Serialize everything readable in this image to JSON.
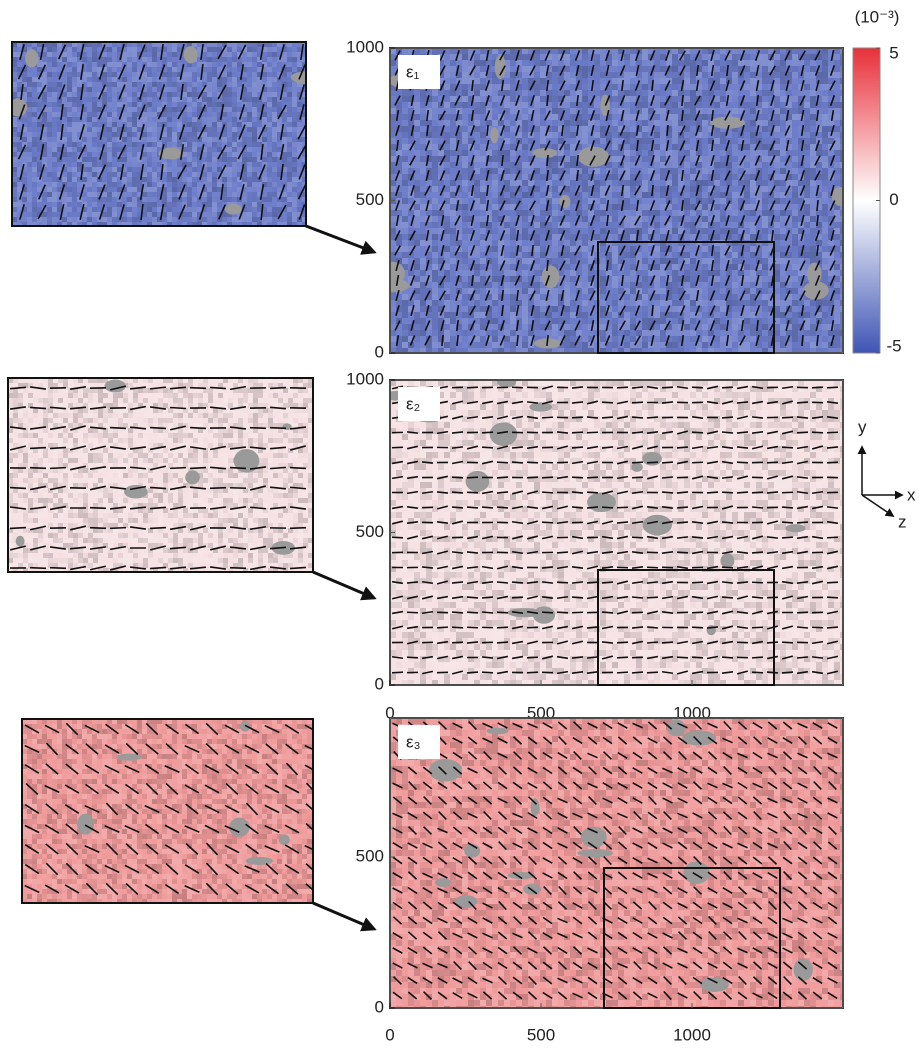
{
  "chart_data": [
    {
      "type": "heatmap",
      "label": "ε₁",
      "color": "#6d7cc9",
      "xlim": [
        0,
        1500
      ],
      "ylim": [
        0,
        1000
      ],
      "yticks": [
        0,
        500,
        1000
      ]
    },
    {
      "type": "heatmap",
      "label": "ε₂",
      "color": "#f6e1e3",
      "xlim": [
        0,
        1500
      ],
      "ylim": [
        0,
        1000
      ],
      "yticks": [
        0,
        500,
        1000
      ],
      "xticks": [
        0,
        500,
        1000
      ]
    },
    {
      "type": "heatmap",
      "label": "ε₃",
      "color": "#f09a9b",
      "xlim": [
        0,
        1500
      ],
      "ylim": [
        0,
        960
      ],
      "yticks": [
        0,
        500
      ],
      "xticks": [
        0,
        500,
        1000
      ]
    }
  ],
  "colorbar": {
    "label": "(10⁻³)",
    "clim": [
      -5,
      5
    ],
    "ticks": [
      -5,
      0,
      5
    ],
    "colors": [
      "#3f55b5",
      "#ffffff",
      "#e8303a"
    ]
  },
  "axes_triad": {
    "x": "x",
    "y": "y",
    "z": "z"
  }
}
